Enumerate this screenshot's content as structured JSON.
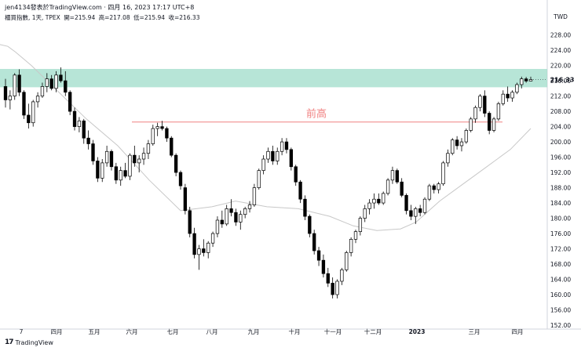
{
  "header": {
    "publisher": "jen4134發表於TradingView.com · 四月 16, 2023 17:17 UTC+8",
    "symbol": "櫃買指數, 1天, TPEX",
    "open": "開=215.94",
    "high": "高=217.08",
    "low": "低=215.94",
    "close": "收=216.33"
  },
  "footer": {
    "brand": "TradingView",
    "logo": "17"
  },
  "currency": "TWD",
  "last_price_label": "216.33",
  "annotation": "前高",
  "colors": {
    "up": "#ffffff",
    "down": "#000000",
    "zone": "#9fdcc9",
    "ma": "#c8c8c8",
    "prev_high_line": "#f08080",
    "grid": "#e0e3eb"
  },
  "chart_data": {
    "type": "candlestick",
    "title": "櫃買指數, 1天, TPEX",
    "y_axis": {
      "ticks": [
        152,
        156,
        160,
        164,
        168,
        172,
        176,
        180,
        184,
        188,
        192,
        196,
        200,
        204,
        208,
        212,
        216,
        220,
        224,
        228
      ],
      "range": [
        151.8,
        231
      ],
      "currency": "TWD"
    },
    "x_axis": {
      "labels": [
        "7",
        "四月",
        "五月",
        "六月",
        "七月",
        "八月",
        "九月",
        "十月",
        "十一月",
        "十二月",
        "2023",
        "三月",
        "四月"
      ]
    },
    "resistance_zone": [
      214.3,
      219.1
    ],
    "previous_high": 205.2,
    "moving_average": [
      [
        0,
        225.5
      ],
      [
        10,
        225
      ],
      [
        20,
        223.5
      ],
      [
        40,
        220
      ],
      [
        70,
        214
      ],
      [
        110,
        206
      ],
      [
        150,
        199
      ],
      [
        190,
        190
      ],
      [
        230,
        182
      ],
      [
        270,
        183
      ],
      [
        300,
        184.5
      ],
      [
        340,
        183
      ],
      [
        380,
        182.5
      ],
      [
        420,
        180.5
      ],
      [
        450,
        178
      ],
      [
        480,
        176.8
      ],
      [
        510,
        177.2
      ],
      [
        530,
        179
      ],
      [
        560,
        184.5
      ],
      [
        590,
        189
      ],
      [
        620,
        193.5
      ],
      [
        650,
        198
      ],
      [
        676,
        203.5
      ]
    ],
    "series": [
      {
        "name": "櫃買指數",
        "ohlc": [
          [
            214.5,
            216.5,
            209.0,
            211.0
          ],
          [
            211.0,
            213.5,
            208.5,
            212.0
          ],
          [
            212.0,
            218.0,
            211.0,
            217.5
          ],
          [
            217.5,
            219.0,
            212.0,
            213.0
          ],
          [
            213.0,
            213.5,
            206.0,
            207.0
          ],
          [
            207.0,
            210.0,
            203.5,
            205.0
          ],
          [
            205.0,
            211.0,
            204.0,
            210.5
          ],
          [
            210.5,
            213.0,
            209.0,
            212.0
          ],
          [
            212.0,
            215.5,
            211.5,
            214.5
          ],
          [
            214.5,
            218.0,
            213.0,
            216.5
          ],
          [
            216.5,
            217.5,
            213.5,
            214.0
          ],
          [
            214.0,
            218.5,
            213.0,
            217.5
          ],
          [
            217.5,
            219.5,
            215.5,
            216.0
          ],
          [
            216.0,
            218.5,
            212.0,
            213.0
          ],
          [
            213.0,
            213.5,
            207.0,
            208.0
          ],
          [
            208.0,
            209.0,
            203.0,
            204.0
          ],
          [
            204.0,
            206.5,
            202.5,
            205.5
          ],
          [
            205.5,
            206.0,
            199.5,
            201.0
          ],
          [
            201.0,
            203.0,
            198.0,
            199.5
          ],
          [
            199.5,
            200.5,
            194.0,
            195.0
          ],
          [
            195.0,
            196.0,
            189.5,
            190.5
          ],
          [
            190.5,
            195.5,
            189.5,
            194.5
          ],
          [
            194.5,
            199.0,
            193.5,
            197.5
          ],
          [
            197.5,
            198.0,
            192.5,
            193.5
          ],
          [
            193.5,
            194.5,
            189.0,
            190.0
          ],
          [
            190.0,
            193.5,
            188.5,
            192.5
          ],
          [
            192.5,
            194.5,
            190.5,
            191.0
          ],
          [
            191.0,
            197.0,
            190.0,
            196.5
          ],
          [
            196.5,
            199.0,
            193.5,
            194.5
          ],
          [
            194.5,
            196.5,
            192.0,
            195.5
          ],
          [
            195.5,
            198.5,
            194.0,
            197.0
          ],
          [
            197.0,
            200.5,
            195.5,
            199.5
          ],
          [
            199.5,
            204.5,
            199.0,
            203.5
          ],
          [
            203.5,
            205.0,
            201.5,
            204.0
          ],
          [
            204.0,
            205.5,
            203.0,
            203.5
          ],
          [
            203.5,
            204.0,
            200.0,
            201.0
          ],
          [
            201.0,
            201.5,
            196.0,
            196.5
          ],
          [
            196.5,
            197.0,
            191.0,
            192.0
          ],
          [
            192.0,
            192.5,
            187.5,
            188.5
          ],
          [
            188.0,
            189.0,
            181.0,
            182.0
          ],
          [
            182.0,
            183.0,
            175.0,
            176.0
          ],
          [
            176.0,
            177.5,
            169.5,
            170.5
          ],
          [
            170.5,
            173.0,
            166.5,
            172.0
          ],
          [
            172.0,
            174.5,
            170.0,
            171.0
          ],
          [
            171.0,
            174.0,
            169.5,
            173.5
          ],
          [
            173.5,
            176.5,
            172.5,
            176.0
          ],
          [
            176.0,
            180.5,
            175.0,
            179.5
          ],
          [
            179.5,
            182.0,
            177.5,
            178.5
          ],
          [
            178.5,
            183.5,
            178.0,
            182.5
          ],
          [
            182.5,
            185.0,
            180.5,
            181.5
          ],
          [
            181.5,
            182.5,
            178.0,
            179.0
          ],
          [
            179.0,
            182.0,
            177.0,
            181.0
          ],
          [
            181.0,
            183.0,
            180.0,
            182.5
          ],
          [
            182.5,
            184.5,
            181.5,
            183.5
          ],
          [
            183.5,
            189.0,
            183.0,
            188.0
          ],
          [
            188.0,
            193.0,
            187.5,
            192.5
          ],
          [
            192.5,
            196.5,
            191.5,
            195.5
          ],
          [
            195.5,
            198.5,
            194.5,
            197.5
          ],
          [
            197.5,
            199.0,
            194.0,
            195.0
          ],
          [
            195.0,
            198.5,
            194.0,
            197.5
          ],
          [
            197.5,
            201.0,
            196.5,
            200.0
          ],
          [
            200.0,
            201.0,
            197.0,
            198.0
          ],
          [
            198.0,
            198.5,
            192.5,
            193.5
          ],
          [
            193.5,
            194.0,
            188.5,
            189.5
          ],
          [
            189.5,
            190.0,
            184.0,
            185.0
          ],
          [
            185.0,
            186.0,
            179.5,
            180.5
          ],
          [
            180.5,
            181.0,
            175.0,
            176.0
          ],
          [
            176.0,
            177.0,
            170.5,
            171.5
          ],
          [
            171.5,
            172.5,
            167.5,
            169.0
          ],
          [
            169.0,
            170.5,
            164.5,
            165.5
          ],
          [
            165.5,
            167.0,
            162.0,
            163.0
          ],
          [
            163.0,
            164.5,
            159.0,
            160.0
          ],
          [
            160.0,
            164.0,
            159.0,
            163.5
          ],
          [
            163.5,
            167.0,
            162.5,
            166.5
          ],
          [
            166.5,
            171.5,
            166.0,
            171.0
          ],
          [
            171.0,
            175.0,
            170.0,
            174.5
          ],
          [
            174.5,
            177.0,
            173.5,
            176.5
          ],
          [
            176.5,
            180.5,
            175.5,
            180.0
          ],
          [
            180.0,
            183.5,
            179.0,
            182.5
          ],
          [
            182.5,
            185.0,
            181.0,
            184.0
          ],
          [
            184.0,
            186.5,
            182.5,
            185.0
          ],
          [
            185.0,
            186.5,
            183.5,
            184.0
          ],
          [
            184.0,
            187.0,
            183.5,
            186.5
          ],
          [
            186.5,
            190.5,
            186.0,
            190.0
          ],
          [
            190.0,
            193.5,
            189.0,
            192.5
          ],
          [
            192.5,
            193.0,
            189.0,
            189.5
          ],
          [
            189.5,
            190.5,
            185.5,
            186.0
          ],
          [
            186.0,
            186.5,
            181.0,
            182.0
          ],
          [
            182.0,
            183.5,
            179.5,
            180.5
          ],
          [
            180.5,
            183.0,
            178.5,
            182.5
          ],
          [
            182.5,
            183.5,
            180.5,
            181.5
          ],
          [
            181.5,
            185.5,
            181.0,
            185.0
          ],
          [
            185.0,
            189.0,
            184.5,
            188.5
          ],
          [
            188.5,
            189.0,
            186.5,
            187.5
          ],
          [
            187.5,
            189.5,
            186.5,
            189.0
          ],
          [
            189.0,
            195.0,
            188.5,
            194.5
          ],
          [
            194.5,
            198.0,
            193.5,
            197.0
          ],
          [
            197.0,
            201.0,
            196.5,
            200.5
          ],
          [
            200.5,
            201.5,
            198.0,
            199.0
          ],
          [
            199.0,
            201.0,
            197.5,
            200.0
          ],
          [
            200.0,
            203.5,
            199.5,
            203.0
          ],
          [
            203.0,
            206.5,
            202.5,
            206.0
          ],
          [
            206.0,
            209.5,
            205.0,
            209.0
          ],
          [
            209.0,
            212.5,
            208.0,
            212.0
          ],
          [
            212.0,
            213.5,
            206.5,
            207.5
          ],
          [
            207.5,
            208.0,
            202.0,
            203.0
          ],
          [
            203.0,
            206.5,
            202.5,
            206.0
          ],
          [
            206.0,
            210.5,
            205.5,
            210.0
          ],
          [
            210.0,
            213.5,
            209.5,
            212.5
          ],
          [
            212.5,
            214.5,
            210.5,
            211.5
          ],
          [
            211.5,
            213.5,
            210.5,
            213.0
          ],
          [
            213.0,
            215.5,
            212.5,
            215.0
          ],
          [
            215.0,
            217.08,
            214.0,
            216.5
          ],
          [
            216.5,
            217.0,
            215.5,
            215.94
          ],
          [
            215.94,
            217.08,
            215.94,
            216.33
          ]
        ]
      }
    ]
  }
}
